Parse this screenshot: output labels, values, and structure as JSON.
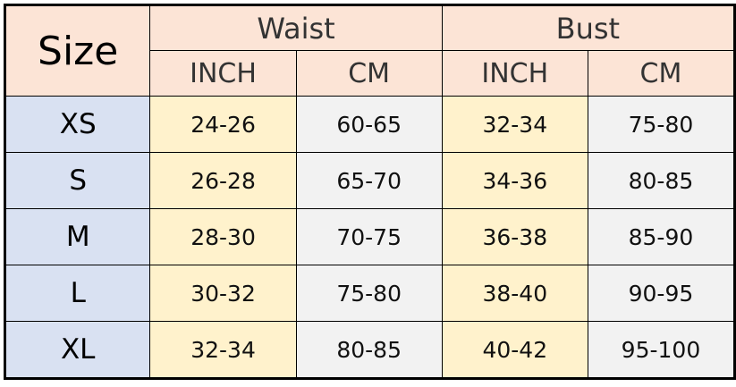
{
  "header": {
    "size": "Size",
    "groups": [
      "Waist",
      "Bust"
    ],
    "units": [
      "INCH",
      "CM",
      "INCH",
      "CM"
    ]
  },
  "rows": [
    {
      "size": "XS",
      "waist_inch": "24-26",
      "waist_cm": "60-65",
      "bust_inch": "32-34",
      "bust_cm": "75-80"
    },
    {
      "size": "S",
      "waist_inch": "26-28",
      "waist_cm": "65-70",
      "bust_inch": "34-36",
      "bust_cm": "80-85"
    },
    {
      "size": "M",
      "waist_inch": "28-30",
      "waist_cm": "70-75",
      "bust_inch": "36-38",
      "bust_cm": "85-90"
    },
    {
      "size": "L",
      "waist_inch": "30-32",
      "waist_cm": "75-80",
      "bust_inch": "38-40",
      "bust_cm": "90-95"
    },
    {
      "size": "XL",
      "waist_inch": "32-34",
      "waist_cm": "80-85",
      "bust_inch": "40-42",
      "bust_cm": "95-100"
    }
  ],
  "colors": {
    "header": "#fce4d6",
    "size_column": "#d9e1f2",
    "inch_column": "#fff2cc",
    "cm_column": "#f2f2f2"
  }
}
